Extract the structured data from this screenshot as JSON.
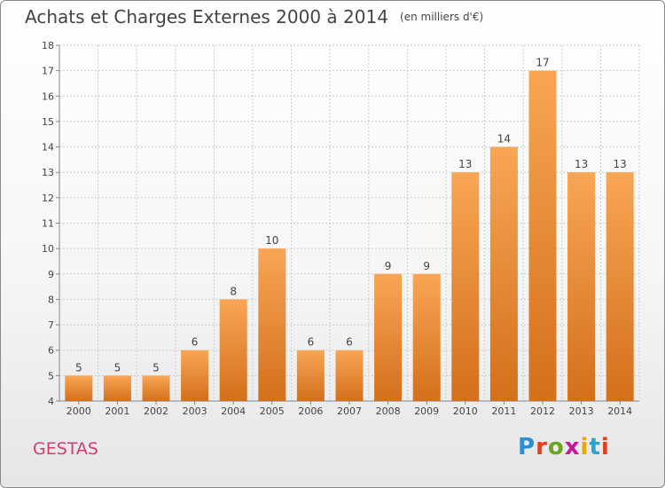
{
  "header": {
    "title": "Achats et Charges Externes 2000 à 2014",
    "unit": "(en milliers d'€)"
  },
  "footer": {
    "place": "GESTAS",
    "logo": "Proxiti"
  },
  "colors": {
    "bar_light": "#f8a655",
    "bar_dark": "#d46f1b",
    "grid": "#cccccc",
    "place_text": "#d33d6a"
  },
  "chart_data": {
    "type": "bar",
    "title": "Achats et Charges Externes 2000 à 2014",
    "subtitle": "(en milliers d'€)",
    "categories": [
      "2000",
      "2001",
      "2002",
      "2003",
      "2004",
      "2005",
      "2006",
      "2007",
      "2008",
      "2009",
      "2010",
      "2011",
      "2012",
      "2013",
      "2014"
    ],
    "values": [
      5,
      5,
      5,
      6,
      8,
      10,
      6,
      6,
      9,
      9,
      13,
      14,
      17,
      13,
      13
    ],
    "ylim": [
      4,
      18
    ],
    "yticks": [
      4,
      5,
      6,
      7,
      8,
      9,
      10,
      11,
      12,
      13,
      14,
      15,
      16,
      17,
      18
    ],
    "grid": true,
    "data_labels": true
  }
}
